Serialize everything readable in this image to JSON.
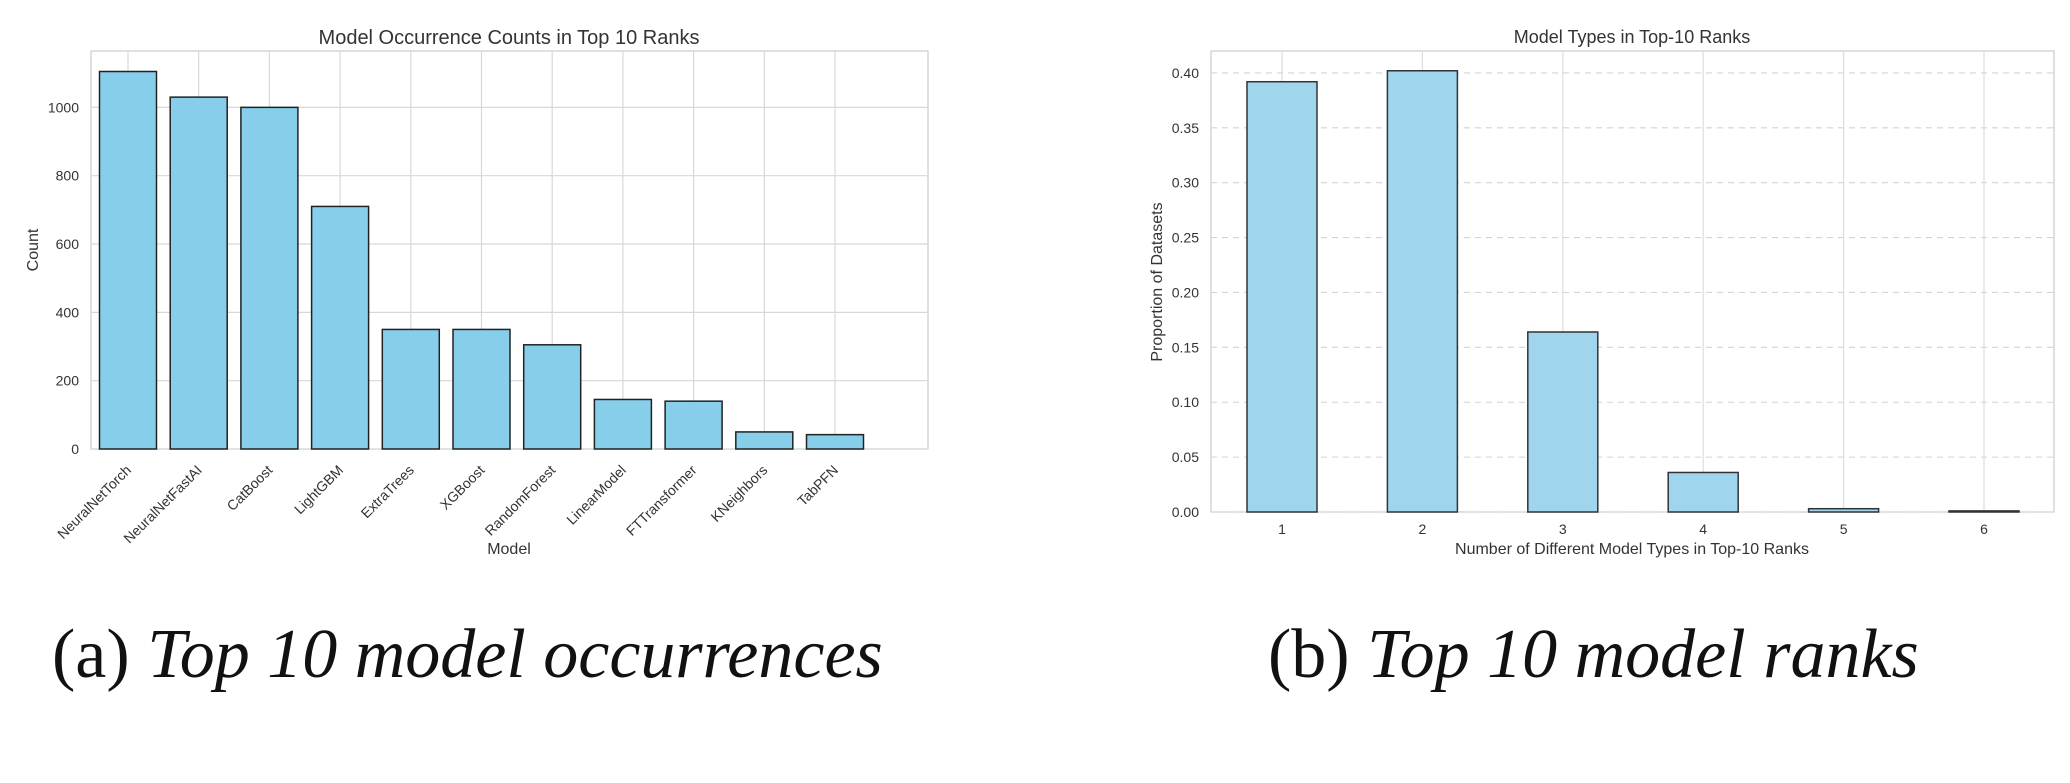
{
  "chart_data": [
    {
      "type": "bar",
      "title": "Model Occurrence Counts in Top 10 Ranks",
      "xlabel": "Model",
      "ylabel": "Count",
      "categories": [
        "NeuralNetTorch",
        "NeuralNetFastAI",
        "CatBoost",
        "LightGBM",
        "ExtraTrees",
        "XGBoost",
        "RandomForest",
        "LinearModel",
        "FTTransformer",
        "KNeighbors",
        "TabPFN"
      ],
      "values": [
        1105,
        1030,
        1000,
        710,
        350,
        350,
        305,
        145,
        140,
        50,
        42
      ],
      "ylim": [
        0,
        1165
      ],
      "yticks": [
        0,
        200,
        400,
        600,
        800,
        1000
      ],
      "grid": true,
      "bar_color": "#87ceeb",
      "edge_color": "#222222"
    },
    {
      "type": "bar",
      "title": "Model Types in Top-10 Ranks",
      "xlabel": "Number of Different Model Types in Top-10 Ranks",
      "ylabel": "Proportion of Datasets",
      "categories": [
        "1",
        "2",
        "3",
        "4",
        "5",
        "6"
      ],
      "values": [
        0.392,
        0.402,
        0.164,
        0.036,
        0.003,
        0.001
      ],
      "ylim": [
        0,
        0.42
      ],
      "yticks": [
        "0.00",
        "0.05",
        "0.10",
        "0.15",
        "0.20",
        "0.25",
        "0.30",
        "0.35",
        "0.40"
      ],
      "grid": true,
      "bar_color": "#9fd6ee",
      "edge_color": "#333333"
    }
  ],
  "captions": {
    "a_prefix": "(a) ",
    "a_text": "Top 10 model occurrences",
    "b_prefix": "(b) ",
    "b_text": "Top 10 model ranks"
  }
}
